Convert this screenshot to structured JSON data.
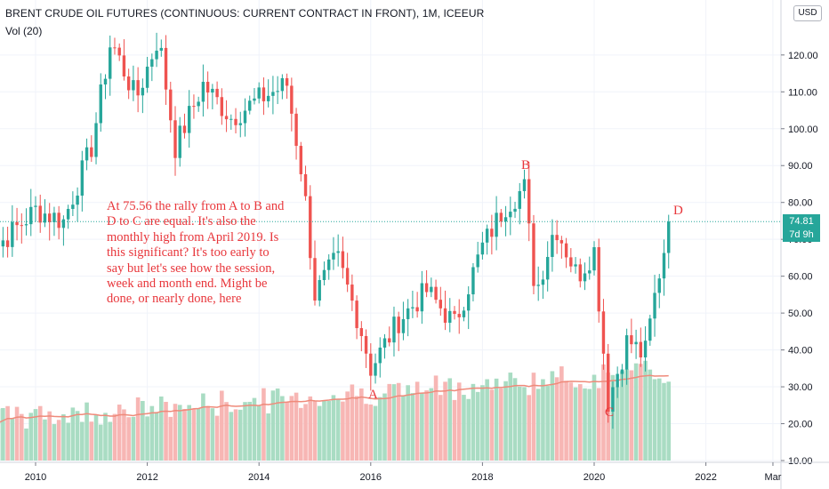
{
  "header": {
    "title": "BRENT CRUDE OIL FUTURES (CONTINUOUS: CURRENT CONTRACT IN FRONT), 1M, ICEEUR",
    "volume_label": "Vol (20)",
    "currency": "USD"
  },
  "price_label": {
    "price": "74.81",
    "countdown": "7d 9h"
  },
  "annotation": "At 75.56 the rally from A to B and D to C are equal. It's also the monthly high from April 2019. Is this significant? It's too early to say but let's see how the session, week and month end. Might be done, or nearly done, here",
  "waves": {
    "a": "A",
    "b": "B",
    "c": "C",
    "d": "D"
  },
  "colors": {
    "up": "#26a69a",
    "down": "#ef5350",
    "vol_up": "#a9dcc3",
    "vol_down": "#f7b6b4",
    "ma": "#ef8a7a",
    "text_red": "#e8363b"
  },
  "chart_data": {
    "type": "candlestick",
    "title": "BRENT CRUDE OIL FUTURES (CONTINUOUS: CURRENT CONTRACT IN FRONT), 1M, ICEEUR",
    "y_axis_ticks": [
      "10.00",
      "20.00",
      "30.00",
      "40.00",
      "50.00",
      "60.00",
      "70.00",
      "80.00",
      "90.00",
      "100.00",
      "110.00",
      "120.00"
    ],
    "x_axis_ticks": [
      "2010",
      "2012",
      "2014",
      "2016",
      "2018",
      "2020",
      "2022",
      "Mar"
    ],
    "ylim": [
      10,
      130
    ],
    "last_price": 74.81,
    "anchors": [
      {
        "year": 2009.0,
        "value": 50
      },
      {
        "year": 2009.3,
        "value": 68
      },
      {
        "year": 2010.0,
        "value": 78
      },
      {
        "year": 2010.5,
        "value": 75
      },
      {
        "year": 2011.0,
        "value": 95
      },
      {
        "year": 2011.35,
        "value": 124
      },
      {
        "year": 2011.8,
        "value": 108
      },
      {
        "year": 2012.2,
        "value": 125
      },
      {
        "year": 2012.5,
        "value": 95
      },
      {
        "year": 2013.0,
        "value": 112
      },
      {
        "year": 2013.5,
        "value": 103
      },
      {
        "year": 2014.0,
        "value": 108
      },
      {
        "year": 2014.5,
        "value": 112
      },
      {
        "year": 2014.8,
        "value": 85
      },
      {
        "year": 2015.0,
        "value": 55
      },
      {
        "year": 2015.4,
        "value": 65
      },
      {
        "year": 2015.8,
        "value": 47
      },
      {
        "year": 2016.0,
        "value": 35
      },
      {
        "year": 2016.5,
        "value": 48
      },
      {
        "year": 2017.0,
        "value": 56
      },
      {
        "year": 2017.5,
        "value": 47
      },
      {
        "year": 2018.0,
        "value": 68
      },
      {
        "year": 2018.4,
        "value": 79
      },
      {
        "year": 2018.75,
        "value": 84
      },
      {
        "year": 2018.95,
        "value": 55
      },
      {
        "year": 2019.3,
        "value": 74
      },
      {
        "year": 2019.7,
        "value": 60
      },
      {
        "year": 2020.0,
        "value": 67
      },
      {
        "year": 2020.25,
        "value": 26
      },
      {
        "year": 2020.6,
        "value": 43
      },
      {
        "year": 2020.9,
        "value": 38
      },
      {
        "year": 2021.1,
        "value": 56
      },
      {
        "year": 2021.35,
        "value": 74.81
      }
    ]
  }
}
